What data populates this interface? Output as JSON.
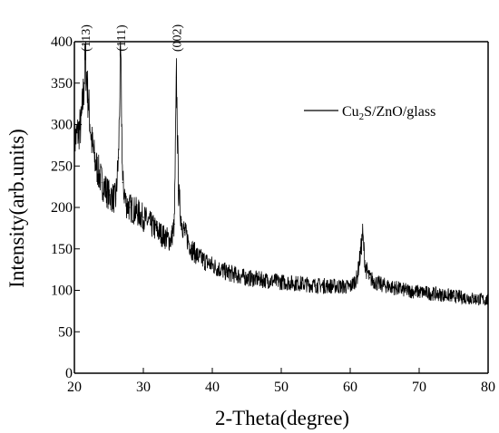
{
  "chart_data": {
    "type": "line",
    "title": "",
    "xlabel": "2-Theta(degree)",
    "ylabel": "Intensity(arb.units)",
    "xlim": [
      20,
      80
    ],
    "ylim": [
      0,
      400
    ],
    "xticks": [
      20,
      30,
      40,
      50,
      60,
      70,
      80
    ],
    "yticks": [
      0,
      50,
      100,
      150,
      200,
      250,
      300,
      350,
      400
    ],
    "grid": false,
    "legend_position": "top-right",
    "colors": {
      "line": "#000000"
    },
    "series": [
      {
        "name": "Cu2S/ZnO/glass",
        "label_main": "Cu",
        "label_sub": "2",
        "label_rest": "S/ZnO/glass",
        "x": [
          20,
          20.5,
          21,
          21.4,
          21.6,
          22,
          22.5,
          23,
          24,
          25,
          26,
          26.4,
          26.7,
          27,
          27.5,
          28,
          29,
          30,
          31,
          32,
          33,
          34,
          34.5,
          34.8,
          35.1,
          35.5,
          36,
          37,
          38,
          40,
          42,
          45,
          48,
          50,
          53,
          55,
          58,
          60,
          61,
          61.5,
          61.8,
          62.2,
          62.8,
          64,
          66,
          68,
          70,
          72,
          75,
          78,
          80
        ],
        "y": [
          280,
          290,
          300,
          350,
          380,
          330,
          280,
          255,
          230,
          215,
          210,
          260,
          388,
          230,
          205,
          200,
          195,
          188,
          180,
          172,
          165,
          160,
          180,
          357,
          220,
          185,
          170,
          150,
          140,
          130,
          122,
          115,
          112,
          110,
          108,
          106,
          105,
          104,
          115,
          145,
          168,
          128,
          115,
          108,
          104,
          100,
          98,
          96,
          93,
          90,
          88
        ]
      }
    ],
    "annotations": [
      {
        "text": "(113)",
        "x": 21.6
      },
      {
        "text": "(111)",
        "x": 26.7
      },
      {
        "text": "(002)",
        "x": 34.8
      }
    ]
  }
}
